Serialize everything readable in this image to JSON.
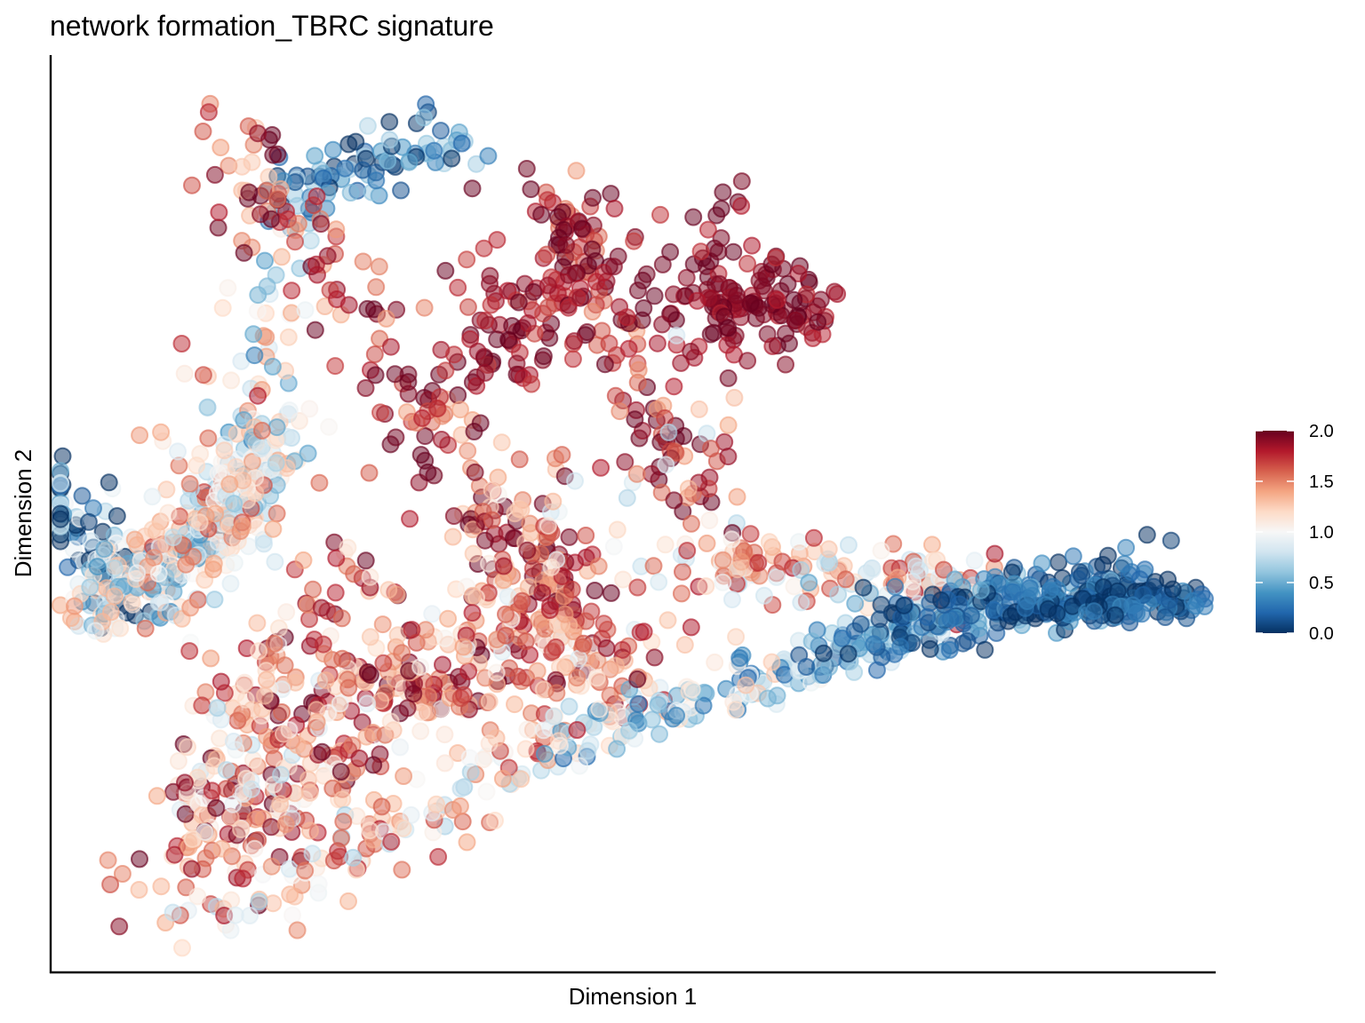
{
  "chart_data": {
    "type": "scatter",
    "title": "network formation_TBRC signature",
    "xlabel": "Dimension 1",
    "ylabel": "Dimension 2",
    "x_ticks_shown": false,
    "y_ticks_shown": false,
    "grid": false,
    "point_opacity": 0.5,
    "color_scale": {
      "name": "RdBu (reversed)",
      "range": [
        0.0,
        2.0
      ],
      "ticks": [
        "0.0",
        "0.5",
        "1.0",
        "1.5",
        "2.0"
      ],
      "stops": [
        "#053061",
        "#2166ac",
        "#4393c3",
        "#92c5de",
        "#d1e5f0",
        "#f7f7f7",
        "#fddbc7",
        "#f4a582",
        "#d6604d",
        "#b2182b",
        "#67001f"
      ],
      "legend_position": "right"
    },
    "segments": [
      {
        "x": [
          0.0,
          0.4
        ],
        "y": [
          0.4,
          0.21
        ],
        "count": 90,
        "spread": 0.028,
        "value": 0.25,
        "value_jitter": 0.8
      },
      {
        "x": [
          0.2,
          0.7
        ],
        "y": [
          0.21,
          0.29
        ],
        "count": 110,
        "spread": 0.03,
        "value": 0.9,
        "value_jitter": 0.55
      },
      {
        "x": [
          0.7,
          1.04
        ],
        "y": [
          0.29,
          0.46
        ],
        "count": 110,
        "spread": 0.028,
        "value": 0.85,
        "value_jitter": 0.55
      },
      {
        "x": [
          0.4,
          0.95
        ],
        "y": [
          0.21,
          0.45
        ],
        "count": 90,
        "spread": 0.03,
        "value": 1.2,
        "value_jitter": 0.5
      },
      {
        "x": [
          0.95,
          1.1
        ],
        "y": [
          0.45,
          0.84
        ],
        "count": 55,
        "spread": 0.03,
        "value": 0.9,
        "value_jitter": 0.6
      },
      {
        "x": [
          1.1,
          1.85
        ],
        "y": [
          0.84,
          0.92
        ],
        "count": 80,
        "spread": 0.025,
        "value": 0.35,
        "value_jitter": 0.4
      },
      {
        "x": [
          1.5,
          1.98
        ],
        "y": [
          0.1,
          0.07
        ],
        "count": 45,
        "spread": 0.03,
        "value": 1.6,
        "value_jitter": 0.6
      },
      {
        "x": [
          0.9,
          2.3
        ],
        "y": [
          0.93,
          0.2
        ],
        "count": 150,
        "spread": 0.032,
        "value": 1.75,
        "value_jitter": 0.5
      },
      {
        "x": [
          2.35,
          2.75
        ],
        "y": [
          0.19,
          0.05
        ],
        "count": 70,
        "spread": 0.03,
        "value": 1.45,
        "value_jitter": 0.6
      },
      {
        "x": [
          2.9,
          4.35
        ],
        "y": [
          0.28,
          0.23
        ],
        "count": 140,
        "spread": 0.026,
        "value": 1.25,
        "value_jitter": 0.6
      },
      {
        "x": [
          1.35,
          2.55
        ],
        "y": [
          0.08,
          0.13
        ],
        "count": 80,
        "spread": 0.03,
        "value": 1.6,
        "value_jitter": 0.5
      },
      {
        "x": [
          2.0,
          2.45
        ],
        "y": [
          0.17,
          0.26
        ],
        "count": 55,
        "spread": 0.03,
        "value": 1.65,
        "value_jitter": 0.5
      },
      {
        "x": [
          2.35,
          2.95
        ],
        "y": [
          0.85,
          0.36
        ],
        "count": 95,
        "spread": 0.028,
        "value": 1.8,
        "value_jitter": 0.4
      },
      {
        "x": [
          1.8,
          2.35
        ],
        "y": [
          0.14,
          0.4
        ],
        "count": 60,
        "spread": 0.04,
        "value": 1.4,
        "value_jitter": 0.6
      },
      {
        "x": [
          1.95,
          2.6
        ],
        "y": [
          0.57,
          0.8
        ],
        "count": 100,
        "spread": 0.045,
        "value": 1.9,
        "value_jitter": 0.25
      },
      {
        "x": [
          1.9,
          2.2
        ],
        "y": [
          0.55,
          0.6
        ],
        "count": 25,
        "spread": 0.035,
        "value": 1.9,
        "value_jitter": 0.25
      },
      {
        "x": [
          3.0,
          3.45
        ],
        "y": [
          0.66,
          0.67
        ],
        "count": 120,
        "spread": 0.04,
        "value": 1.95,
        "value_jitter": 0.2
      },
      {
        "x": [
          3.0,
          3.2
        ],
        "y": [
          0.8,
          0.7
        ],
        "count": 25,
        "spread": 0.03,
        "value": 1.9,
        "value_jitter": 0.2
      },
      {
        "x": [
          0.75,
          1.42
        ],
        "y": [
          -0.12,
          0.28
        ],
        "count": 110,
        "spread": 0.04,
        "value": 1.6,
        "value_jitter": 0.5
      },
      {
        "x": [
          0.95,
          1.55
        ],
        "y": [
          -0.15,
          0.03
        ],
        "count": 60,
        "spread": 0.03,
        "value": 1.5,
        "value_jitter": 0.6
      },
      {
        "x": [
          0.6,
          1.1
        ],
        "y": [
          -0.25,
          0.08
        ],
        "count": 130,
        "spread": 0.045,
        "value": 1.4,
        "value_jitter": 0.7
      },
      {
        "x": [
          0.85,
          2.3
        ],
        "y": [
          -0.26,
          0.0
        ],
        "count": 110,
        "spread": 0.028,
        "value": 1.25,
        "value_jitter": 0.6
      },
      {
        "x": [
          2.3,
          3.5
        ],
        "y": [
          0.0,
          0.12
        ],
        "count": 110,
        "spread": 0.025,
        "value": 0.75,
        "value_jitter": 0.55
      },
      {
        "x": [
          3.5,
          4.45
        ],
        "y": [
          0.12,
          0.23
        ],
        "count": 100,
        "spread": 0.025,
        "value": 0.5,
        "value_jitter": 0.45
      },
      {
        "x": [
          3.8,
          5.05
        ],
        "y": [
          0.17,
          0.25
        ],
        "count": 170,
        "spread": 0.028,
        "value": 0.2,
        "value_jitter": 0.35
      },
      {
        "x": [
          4.5,
          5.3
        ],
        "y": [
          0.21,
          0.22
        ],
        "count": 130,
        "spread": 0.015,
        "value": 0.12,
        "value_jitter": 0.25
      },
      {
        "x": [
          0.55,
          1.05
        ],
        "y": [
          0.6,
          0.02
        ],
        "count": 40,
        "spread": 0.05,
        "value": 1.15,
        "value_jitter": 0.6
      },
      {
        "x": [
          1.6,
          2.4
        ],
        "y": [
          0.48,
          0.1
        ],
        "count": 25,
        "spread": 0.08,
        "value": 1.5,
        "value_jitter": 0.5
      },
      {
        "x": [
          2.6,
          3.2
        ],
        "y": [
          0.6,
          0.22
        ],
        "count": 25,
        "spread": 0.07,
        "value": 1.3,
        "value_jitter": 0.6
      }
    ],
    "extra_points": [
      {
        "x": 0.78,
        "y": 0.81,
        "value": 1.8
      },
      {
        "x": 0.96,
        "y": 0.53,
        "value": 1.8
      },
      {
        "x": 1.2,
        "y": 0.51,
        "value": 1.05
      },
      {
        "x": 2.37,
        "y": 0.44,
        "value": 1.6
      },
      {
        "x": 2.55,
        "y": 0.42,
        "value": 1.8
      },
      {
        "x": 2.43,
        "y": 0.4,
        "value": 0.8
      },
      {
        "x": 2.1,
        "y": 0.27,
        "value": 1.85
      },
      {
        "x": 2.54,
        "y": 0.27,
        "value": 1.5
      },
      {
        "x": 2.75,
        "y": 0.17,
        "value": 1.8
      },
      {
        "x": 2.94,
        "y": 0.15,
        "value": 1.3
      },
      {
        "x": 2.44,
        "y": 0.02,
        "value": 1.8
      }
    ]
  }
}
